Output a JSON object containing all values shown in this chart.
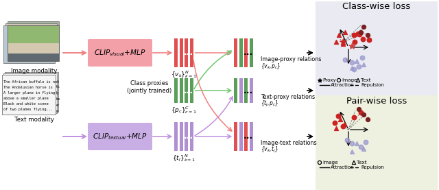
{
  "fig_width": 6.4,
  "fig_height": 2.77,
  "bg_color": "#ffffff",
  "title_class": "Class-wise loss",
  "title_pair": "Pair-wise loss",
  "image_modality_label": "Image modality",
  "text_modality_label": "Text modality",
  "clip_visual_color": "#f4a0a8",
  "clip_textual_color": "#c9aee5",
  "class_bg_top": "#eaeaf2",
  "class_bg_bot": "#eef0e0",
  "bar_red": "#e05050",
  "bar_green": "#5a9e5a",
  "bar_purple": "#b090d0",
  "dot_red": "#cc2222",
  "dot_dark": "#7a2020",
  "dot_purple": "#9898cc",
  "arrow_red": "#f08080",
  "arrow_green": "#70c870",
  "arrow_purple": "#c090e0",
  "img_proxy_label": "Image-proxy relations",
  "img_proxy_sub": "{v$_k$,p$_c$}",
  "txt_proxy_label": "Text-proxy relations",
  "txt_proxy_sub": "{t$_j$,p$_c$}",
  "img_txt_label": "Image-text relations",
  "img_txt_sub": "{v$_k$,t$_j$}",
  "class_proxy_label": "Class proxies\n(jointly trained)",
  "proxy_legend": "Proxy",
  "image_legend": "Image",
  "text_legend": "Text",
  "attraction_legend": "Attraction",
  "repulsion_legend": "Repulsion",
  "vk_label": "$\\{v_k\\}_{k=1}^N$",
  "pc_label": "$\\{p_c\\}_{c=1}^C$",
  "tj_label": "$\\{t_j\\}_{k=1}^N$"
}
